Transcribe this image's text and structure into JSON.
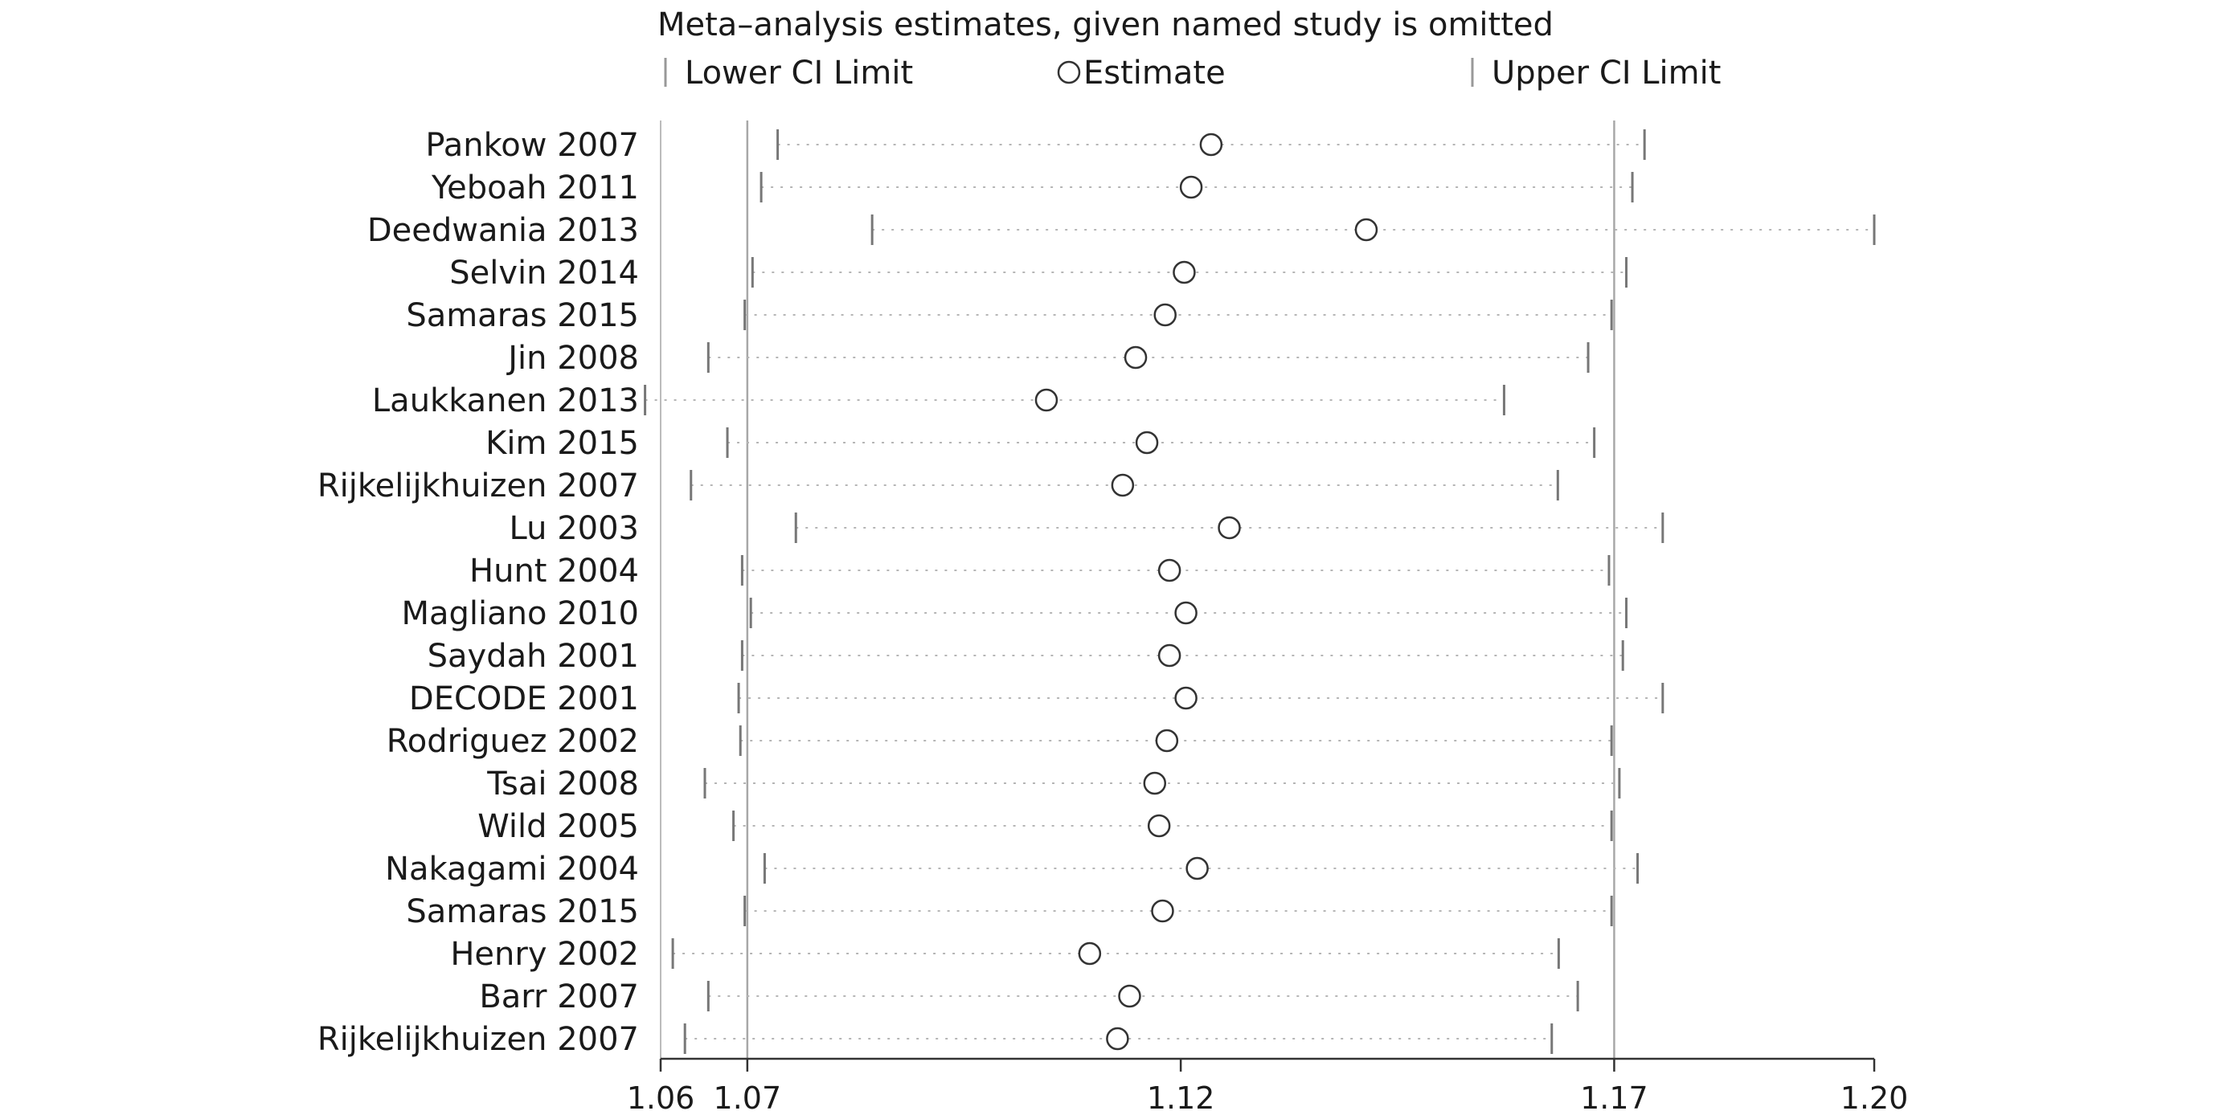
{
  "chart_data": {
    "type": "forest",
    "title": "Meta–analysis estimates, given named study is omitted",
    "legend": {
      "lower": "Lower CI Limit",
      "estimate": "Estimate",
      "upper": "Upper CI Limit",
      "position": "top"
    },
    "x_ticks": [
      {
        "value": 1.06,
        "label": "1.06"
      },
      {
        "value": 1.07,
        "label": "1.07"
      },
      {
        "value": 1.12,
        "label": "1.12"
      },
      {
        "value": 1.17,
        "label": "1.17"
      },
      {
        "value": 1.2,
        "label": "1.20"
      }
    ],
    "xlim": [
      1.06,
      1.2
    ],
    "reference_lines": [
      1.07,
      1.17
    ],
    "studies": [
      {
        "name": "Pankow 2007",
        "lower": 1.0735,
        "estimate": 1.1235,
        "upper": 1.1735
      },
      {
        "name": "Yeboah 2011",
        "lower": 1.0716,
        "estimate": 1.1212,
        "upper": 1.1721
      },
      {
        "name": "Deedwania 2013",
        "lower": 1.0844,
        "estimate": 1.1414,
        "upper": 1.2
      },
      {
        "name": "Selvin 2014",
        "lower": 1.0706,
        "estimate": 1.1204,
        "upper": 1.1714
      },
      {
        "name": "Samaras 2015",
        "lower": 1.0697,
        "estimate": 1.1182,
        "upper": 1.1697
      },
      {
        "name": "Jin 2008",
        "lower": 1.0655,
        "estimate": 1.1148,
        "upper": 1.167
      },
      {
        "name": "Laukkanen 2013",
        "lower": 1.0582,
        "estimate": 1.1045,
        "upper": 1.1573
      },
      {
        "name": "Kim 2015",
        "lower": 1.0677,
        "estimate": 1.1161,
        "upper": 1.1677
      },
      {
        "name": "Rijkelijkhuizen 2007",
        "lower": 1.0635,
        "estimate": 1.1133,
        "upper": 1.1635
      },
      {
        "name": "Lu 2003",
        "lower": 1.0756,
        "estimate": 1.1256,
        "upper": 1.1756
      },
      {
        "name": "Hunt 2004",
        "lower": 1.0694,
        "estimate": 1.1187,
        "upper": 1.1694
      },
      {
        "name": "Magliano 2010",
        "lower": 1.0704,
        "estimate": 1.1206,
        "upper": 1.1714
      },
      {
        "name": "Saydah 2001",
        "lower": 1.0694,
        "estimate": 1.1187,
        "upper": 1.171
      },
      {
        "name": "DECODE 2001",
        "lower": 1.069,
        "estimate": 1.1206,
        "upper": 1.1756
      },
      {
        "name": "Rodriguez 2002",
        "lower": 1.0692,
        "estimate": 1.1184,
        "upper": 1.1697
      },
      {
        "name": "Tsai 2008",
        "lower": 1.0651,
        "estimate": 1.117,
        "upper": 1.1706
      },
      {
        "name": "Wild 2005",
        "lower": 1.0684,
        "estimate": 1.1175,
        "upper": 1.1697
      },
      {
        "name": "Nakagami 2004",
        "lower": 1.072,
        "estimate": 1.1219,
        "upper": 1.1727
      },
      {
        "name": "Samaras 2015",
        "lower": 1.0697,
        "estimate": 1.1179,
        "upper": 1.1697
      },
      {
        "name": "Henry 2002",
        "lower": 1.0614,
        "estimate": 1.1095,
        "upper": 1.1636
      },
      {
        "name": "Barr 2007",
        "lower": 1.0655,
        "estimate": 1.1141,
        "upper": 1.1658
      },
      {
        "name": "Rijkelijkhuizen 2007",
        "lower": 1.0628,
        "estimate": 1.1127,
        "upper": 1.1628
      }
    ]
  }
}
